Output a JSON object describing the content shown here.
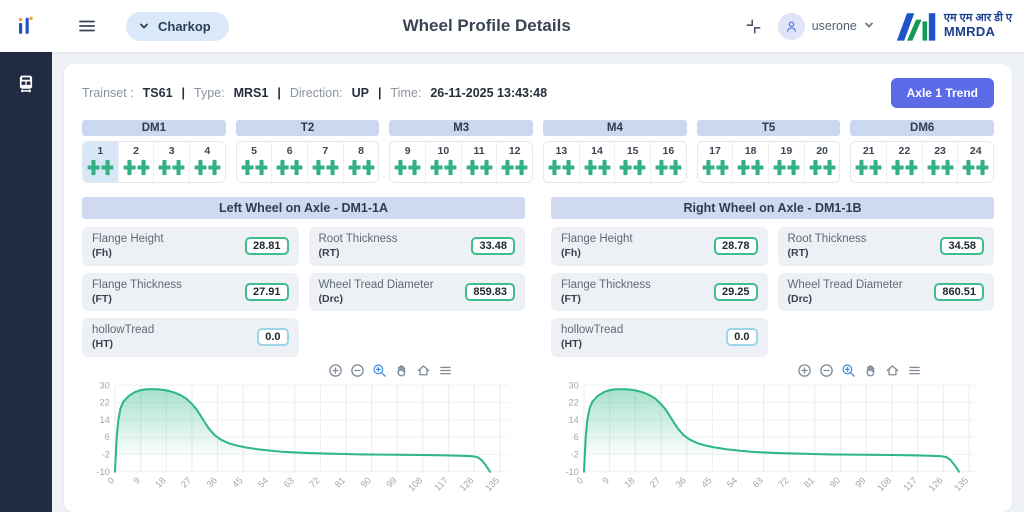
{
  "header": {
    "station": "Charkop",
    "title": "Wheel Profile Details",
    "user_name": "userone",
    "brand_devanagari": "एम एम आर डी ए",
    "brand_latin": "MMRDA"
  },
  "info_bar": {
    "separator": "|",
    "fields": [
      {
        "label": "Trainset :",
        "value": "TS61"
      },
      {
        "label": "Type:",
        "value": "MRS1"
      },
      {
        "label": "Direction:",
        "value": "UP"
      },
      {
        "label": "Time:",
        "value": "26-11-2025 13:43:48"
      }
    ],
    "trend_button": "Axle 1 Trend"
  },
  "cars": {
    "selected_axle": 1,
    "groups": [
      {
        "name": "DM1",
        "axles": [
          1,
          2,
          3,
          4
        ]
      },
      {
        "name": "T2",
        "axles": [
          5,
          6,
          7,
          8
        ]
      },
      {
        "name": "M3",
        "axles": [
          9,
          10,
          11,
          12
        ]
      },
      {
        "name": "M4",
        "axles": [
          13,
          14,
          15,
          16
        ]
      },
      {
        "name": "T5",
        "axles": [
          17,
          18,
          19,
          20
        ]
      },
      {
        "name": "DM6",
        "axles": [
          21,
          22,
          23,
          24
        ]
      }
    ]
  },
  "panels": [
    {
      "title": "Left Wheel on Axle - DM1-1A",
      "metrics": [
        {
          "label": "Flange Height",
          "abbr": "(Fh)",
          "value": "28.81",
          "status": "ok"
        },
        {
          "label": "Root Thickness",
          "abbr": "(RT)",
          "value": "33.48",
          "status": "ok"
        },
        {
          "label": "Flange Thickness",
          "abbr": "(FT)",
          "value": "27.91",
          "status": "ok"
        },
        {
          "label": "Wheel Tread Diameter",
          "abbr": "(Drc)",
          "value": "859.83",
          "status": "ok"
        },
        {
          "label": "hollowTread",
          "abbr": "(HT)",
          "value": "0.0",
          "status": "info"
        }
      ]
    },
    {
      "title": "Right Wheel on Axle - DM1-1B",
      "metrics": [
        {
          "label": "Flange Height",
          "abbr": "(Fh)",
          "value": "28.78",
          "status": "ok"
        },
        {
          "label": "Root Thickness",
          "abbr": "(RT)",
          "value": "34.58",
          "status": "ok"
        },
        {
          "label": "Flange Thickness",
          "abbr": "(FT)",
          "value": "29.25",
          "status": "ok"
        },
        {
          "label": "Wheel Tread Diameter",
          "abbr": "(Drc)",
          "value": "860.51",
          "status": "ok"
        },
        {
          "label": "hollowTread",
          "abbr": "(HT)",
          "value": "0.0",
          "status": "info"
        }
      ]
    }
  ],
  "chart_data": [
    {
      "type": "line",
      "name": "left-wheel-profile",
      "x": [
        0,
        0.6,
        1.2,
        2,
        3,
        5,
        7,
        9,
        11,
        13,
        15,
        17,
        19,
        21,
        23,
        25,
        27,
        28.5,
        30,
        31.5,
        33,
        35,
        37,
        40,
        43,
        46,
        50,
        54,
        58,
        63,
        68,
        74,
        80,
        87,
        94,
        101,
        108,
        115,
        121,
        125,
        127,
        128.5,
        130,
        131.5
      ],
      "y": [
        -10,
        6,
        14,
        19.5,
        22.5,
        25.2,
        26.8,
        27.7,
        28.1,
        28.2,
        28.1,
        27.8,
        27.3,
        26.5,
        25.4,
        23.8,
        21.3,
        19,
        16,
        12.8,
        9.8,
        6.8,
        4.9,
        3.1,
        2,
        1.2,
        0.4,
        -0.2,
        -0.7,
        -1.1,
        -1.4,
        -1.6,
        -1.8,
        -2,
        -2.1,
        -2.2,
        -2.3,
        -2.45,
        -2.6,
        -2.8,
        -3.2,
        -4.5,
        -7,
        -10
      ],
      "xlim": [
        0,
        138
      ],
      "ylim": [
        -10,
        30
      ],
      "xticks": [
        0,
        9,
        18,
        27,
        36,
        45,
        54,
        63,
        72,
        81,
        90,
        99,
        108,
        117,
        126,
        135
      ],
      "yticks": [
        30,
        22,
        14,
        6,
        -2,
        -10
      ],
      "grid": true,
      "legend": "none",
      "line_color": "#30b884",
      "fill": "gradient-to-baseline",
      "baseline": -2,
      "toolbar": [
        "zoom-in",
        "zoom-out",
        "box-zoom",
        "pan",
        "home",
        "menu"
      ],
      "active_tool": "box-zoom"
    },
    {
      "type": "line",
      "name": "right-wheel-profile",
      "x": [
        0,
        0.6,
        1.2,
        2,
        3,
        5,
        7,
        9,
        11,
        13,
        15,
        17,
        19,
        21,
        23,
        25,
        27,
        28.5,
        30,
        31.5,
        33,
        35,
        37,
        40,
        43,
        46,
        50,
        54,
        58,
        63,
        68,
        74,
        80,
        87,
        94,
        101,
        108,
        115,
        121,
        125,
        127,
        128.5,
        130,
        131.5
      ],
      "y": [
        -10,
        6,
        14,
        19.5,
        22.5,
        25.2,
        26.8,
        27.7,
        28.1,
        28.2,
        28.1,
        27.8,
        27.3,
        26.5,
        25.4,
        23.8,
        21.3,
        19,
        16,
        12.8,
        9.8,
        6.8,
        4.9,
        3.1,
        2,
        1.2,
        0.4,
        -0.2,
        -0.7,
        -1.1,
        -1.4,
        -1.6,
        -1.8,
        -2,
        -2.1,
        -2.2,
        -2.3,
        -2.45,
        -2.6,
        -2.8,
        -3.2,
        -4.5,
        -7,
        -10
      ],
      "xlim": [
        0,
        138
      ],
      "ylim": [
        -10,
        30
      ],
      "xticks": [
        0,
        9,
        18,
        27,
        36,
        45,
        54,
        63,
        72,
        81,
        90,
        99,
        108,
        117,
        126,
        135
      ],
      "yticks": [
        30,
        22,
        14,
        6,
        -2,
        -10
      ],
      "grid": true,
      "legend": "none",
      "line_color": "#30b884",
      "fill": "gradient-to-baseline",
      "baseline": -2,
      "toolbar": [
        "zoom-in",
        "zoom-out",
        "box-zoom",
        "pan",
        "home",
        "menu"
      ],
      "active_tool": "box-zoom"
    }
  ],
  "colors": {
    "accent_button": "#5b6be8",
    "wheel_green": "#34b183",
    "value_border_ok": "#3fbd8d",
    "value_border_info": "#9ad6e8",
    "panel_header_bg": "#cfdaf1",
    "sidebar_bg": "#212b42",
    "chart_line": "#30b884"
  }
}
